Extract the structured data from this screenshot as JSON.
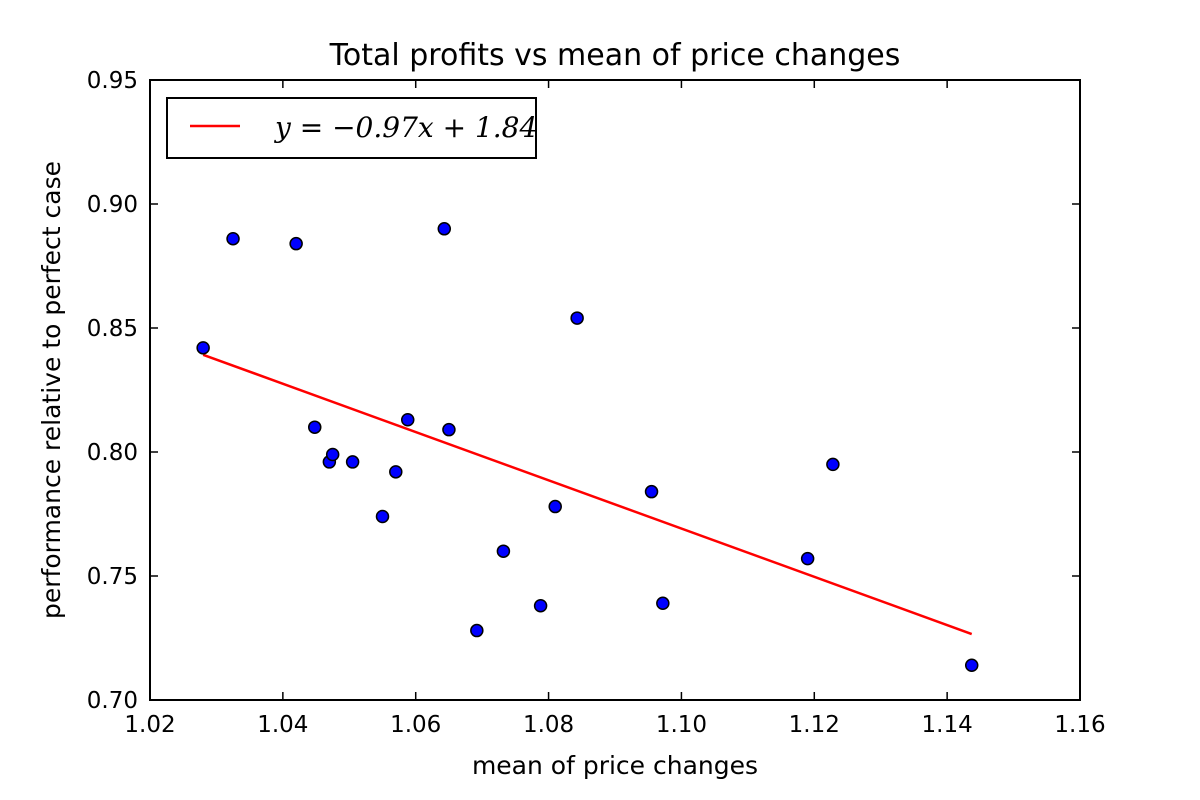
{
  "chart_data": {
    "type": "scatter",
    "title": "Total profits vs mean of price changes",
    "xlabel": "mean of price changes",
    "ylabel": "performance relative to perfect case",
    "xlim": [
      1.02,
      1.16
    ],
    "ylim": [
      0.7,
      0.95
    ],
    "xticks": [
      "1.02",
      "1.04",
      "1.06",
      "1.08",
      "1.10",
      "1.12",
      "1.14",
      "1.16"
    ],
    "yticks": [
      "0.70",
      "0.75",
      "0.80",
      "0.85",
      "0.90",
      "0.95"
    ],
    "grid": false,
    "legend_position": "top-left",
    "point_color": "#0000ff",
    "line_color": "#ff0000",
    "points": [
      {
        "x": 1.028,
        "y": 0.842
      },
      {
        "x": 1.0325,
        "y": 0.886
      },
      {
        "x": 1.042,
        "y": 0.884
      },
      {
        "x": 1.0448,
        "y": 0.81
      },
      {
        "x": 1.047,
        "y": 0.796
      },
      {
        "x": 1.0475,
        "y": 0.799
      },
      {
        "x": 1.0505,
        "y": 0.796
      },
      {
        "x": 1.055,
        "y": 0.774
      },
      {
        "x": 1.057,
        "y": 0.792
      },
      {
        "x": 1.0588,
        "y": 0.813
      },
      {
        "x": 1.0643,
        "y": 0.89
      },
      {
        "x": 1.065,
        "y": 0.809
      },
      {
        "x": 1.0692,
        "y": 0.728
      },
      {
        "x": 1.0732,
        "y": 0.76
      },
      {
        "x": 1.0788,
        "y": 0.738
      },
      {
        "x": 1.081,
        "y": 0.778
      },
      {
        "x": 1.0843,
        "y": 0.854
      },
      {
        "x": 1.0955,
        "y": 0.784
      },
      {
        "x": 1.0972,
        "y": 0.739
      },
      {
        "x": 1.119,
        "y": 0.757
      },
      {
        "x": 1.1228,
        "y": 0.795
      },
      {
        "x": 1.1437,
        "y": 0.714
      }
    ],
    "fit_line": {
      "label": "y = −0.97x + 1.84",
      "x": [
        1.028,
        1.1437
      ],
      "y": [
        0.8392,
        0.7266
      ]
    }
  }
}
